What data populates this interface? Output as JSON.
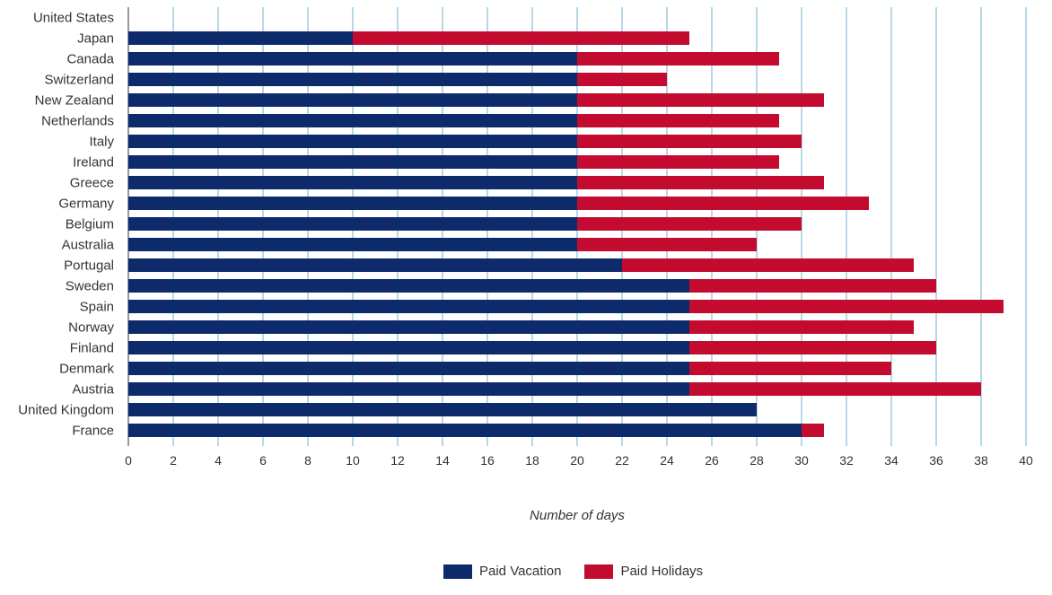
{
  "chart_data": {
    "type": "bar",
    "orientation": "horizontal",
    "stacked": true,
    "title": "",
    "xlabel": "Number of days",
    "ylabel": "",
    "xlim": [
      0,
      40
    ],
    "x_ticks": [
      0,
      2,
      4,
      6,
      8,
      10,
      12,
      14,
      16,
      18,
      20,
      22,
      24,
      26,
      28,
      30,
      32,
      34,
      36,
      38,
      40
    ],
    "grid": true,
    "legend_position": "bottom",
    "categories": [
      "United States",
      "Japan",
      "Canada",
      "Switzerland",
      "New Zealand",
      "Netherlands",
      "Italy",
      "Ireland",
      "Greece",
      "Germany",
      "Belgium",
      "Australia",
      "Portugal",
      "Sweden",
      "Spain",
      "Norway",
      "Finland",
      "Denmark",
      "Austria",
      "United Kingdom",
      "France"
    ],
    "series": [
      {
        "name": "Paid Vacation",
        "color": "#0d2a6b",
        "values": [
          0,
          10,
          20,
          20,
          20,
          20,
          20,
          20,
          20,
          20,
          20,
          20,
          22,
          25,
          25,
          25,
          25,
          25,
          25,
          28,
          30
        ]
      },
      {
        "name": "Paid Holidays",
        "color": "#c30b2f",
        "values": [
          0,
          15,
          9,
          4,
          11,
          9,
          10,
          9,
          11,
          13,
          10,
          8,
          13,
          11,
          14,
          10,
          11,
          9,
          13,
          0,
          1
        ]
      }
    ]
  },
  "colors": {
    "gridline": "#6fb3cf",
    "axis": "#333333"
  }
}
